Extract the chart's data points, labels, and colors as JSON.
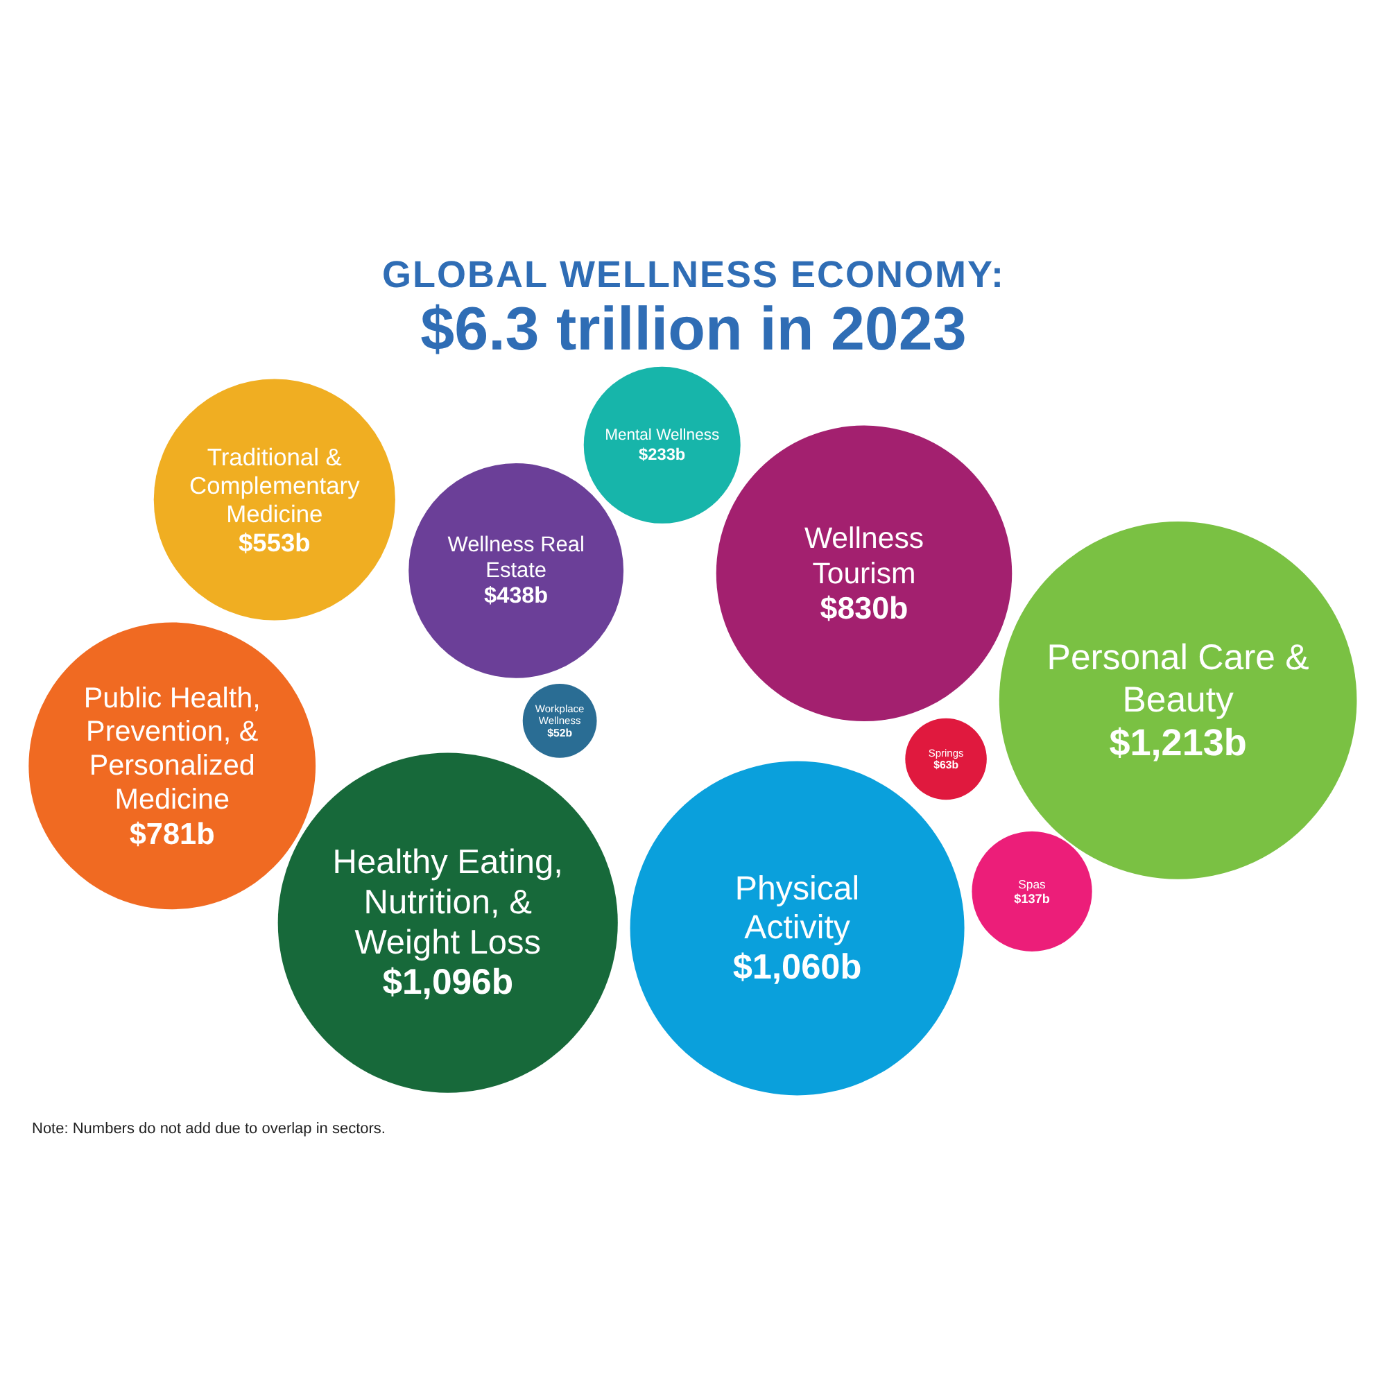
{
  "chart_data": {
    "type": "other",
    "title": "GLOBAL WELLNESS ECONOMY:",
    "subtitle": "$6.3 trillion in 2023",
    "categories": [
      "Traditional & Complementary Medicine",
      "Wellness Real Estate",
      "Mental Wellness",
      "Wellness Tourism",
      "Personal Care & Beauty",
      "Public Health, Prevention, & Personalized Medicine",
      "Workplace Wellness",
      "Springs",
      "Spas",
      "Healthy Eating, Nutrition, & Weight Loss",
      "Physical Activity"
    ],
    "values": [
      553,
      438,
      233,
      830,
      1213,
      781,
      52,
      63,
      137,
      1096,
      1060
    ],
    "value_labels": [
      "$553b",
      "$438b",
      "$233b",
      "$830b",
      "$1,213b",
      "$781b",
      "$52b",
      "$63b",
      "$137b",
      "$1,096b",
      "$1,060b"
    ],
    "colors": [
      "#f0ae22",
      "#6b3f98",
      "#17b5aa",
      "#a3206f",
      "#7ac143",
      "#f06a22",
      "#2a6d94",
      "#e0193e",
      "#ec1e79",
      "#17693a",
      "#0aa0dc"
    ],
    "annotations": [
      "Note: Numbers do not add due to overlap in sectors."
    ]
  }
}
